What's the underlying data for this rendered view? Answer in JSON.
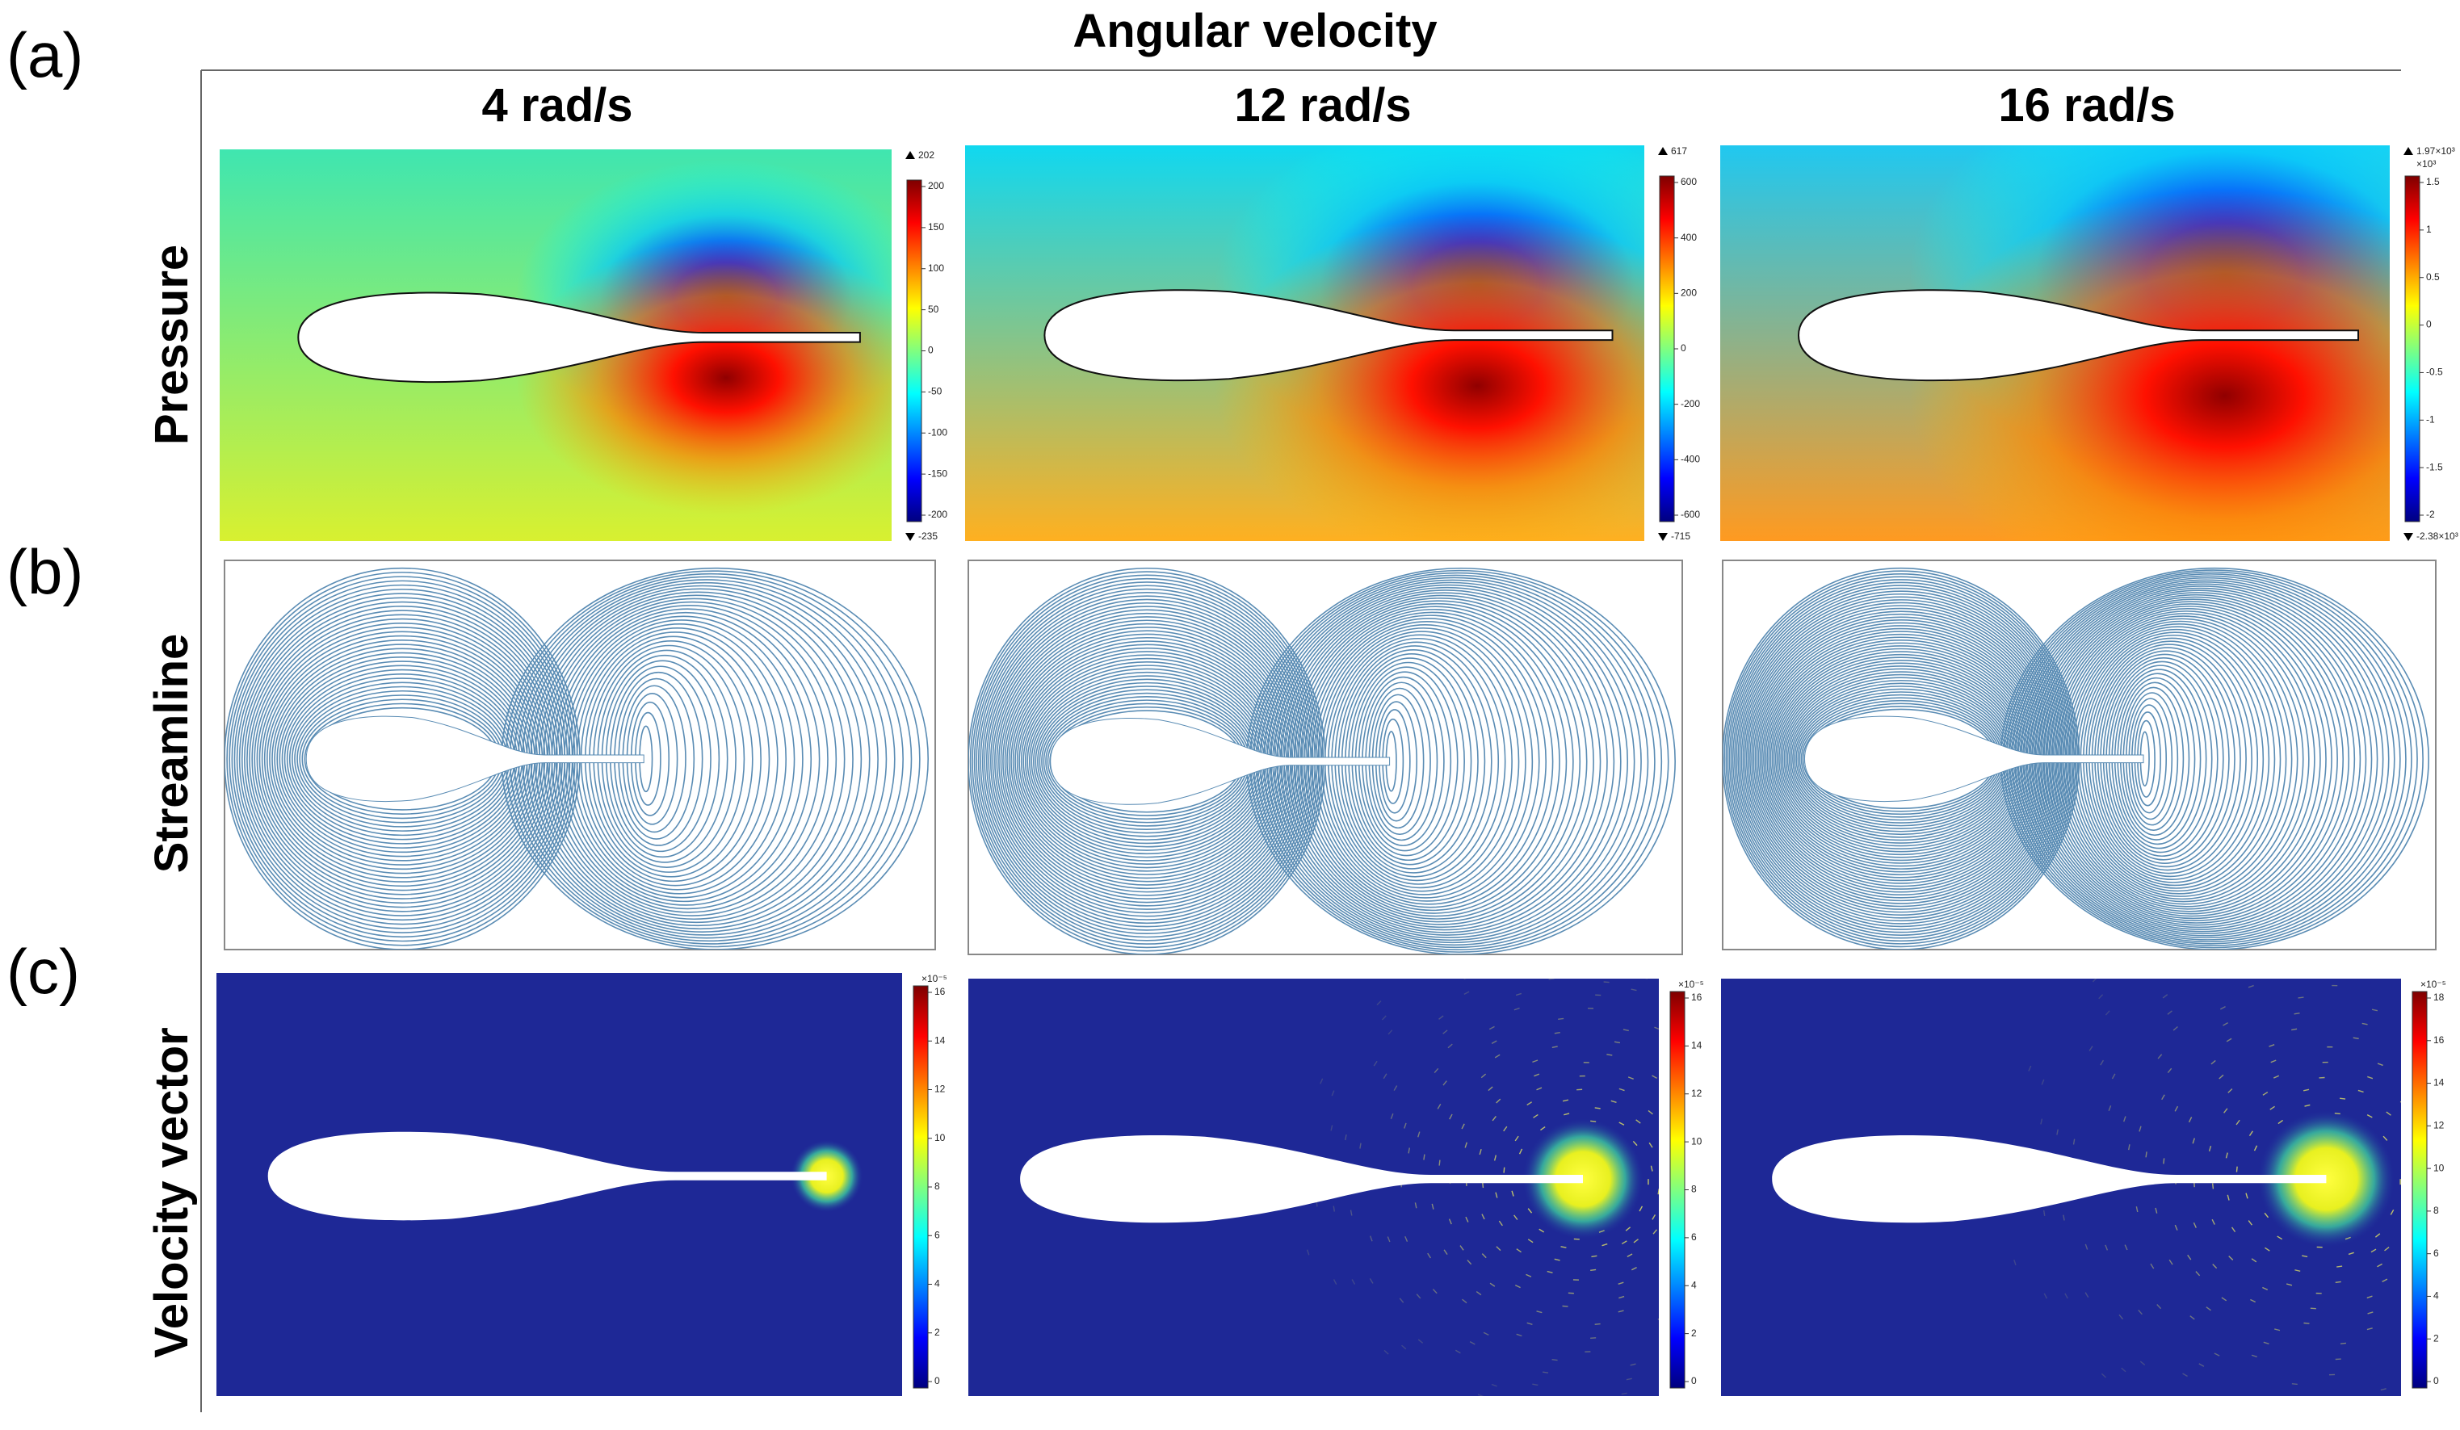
{
  "header": {
    "title": "Angular velocity",
    "columns": [
      "4 rad/s",
      "12 rad/s",
      "16 rad/s"
    ]
  },
  "rows": [
    {
      "tag": "(a)",
      "label": "Pressure",
      "colorbars": [
        {
          "max": "202",
          "min": "-235",
          "ticks": [
            200,
            150,
            100,
            50,
            0,
            -50,
            -100,
            -150,
            -200
          ]
        },
        {
          "max": "617",
          "min": "-715",
          "ticks": [
            600,
            400,
            200,
            0,
            -200,
            -400,
            -600
          ]
        },
        {
          "max": "1.97×10³",
          "exponent": "×10³",
          "min": "-2.38×10³",
          "ticks": [
            1.5,
            1,
            0.5,
            0,
            -0.5,
            -1,
            -1.5,
            -2
          ]
        }
      ]
    },
    {
      "tag": "(b)",
      "label": "Streamline"
    },
    {
      "tag": "(c)",
      "label": "Velocity vector",
      "colorbars": [
        {
          "exponent": "×10⁻⁵",
          "ticks": [
            16,
            14,
            12,
            10,
            8,
            6,
            4,
            2,
            0
          ]
        },
        {
          "exponent": "×10⁻⁵",
          "ticks": [
            16,
            14,
            12,
            10,
            8,
            6,
            4,
            2,
            0
          ]
        },
        {
          "exponent": "×10⁻⁵",
          "ticks": [
            18,
            16,
            14,
            12,
            10,
            8,
            6,
            4,
            2,
            0
          ]
        }
      ]
    }
  ]
}
